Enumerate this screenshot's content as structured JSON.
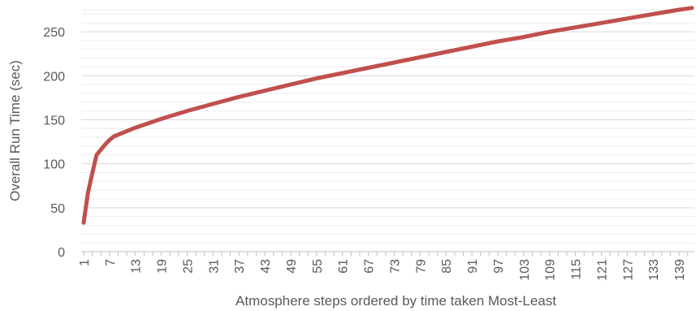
{
  "chart_data": {
    "type": "line",
    "title": "",
    "xlabel": "Atmosphere steps ordered by time taken Most-Least",
    "ylabel": "Overall Run Time (sec)",
    "ylim": [
      0,
      275
    ],
    "yticks": [
      "0",
      "50",
      "100",
      "150",
      "200",
      "250"
    ],
    "xlim": [
      1,
      142
    ],
    "xticks": [
      "1",
      "7",
      "13",
      "19",
      "25",
      "31",
      "37",
      "43",
      "49",
      "55",
      "61",
      "67",
      "73",
      "79",
      "85",
      "91",
      "97",
      "103",
      "109",
      "115",
      "121",
      "127",
      "133",
      "139"
    ],
    "grid": true,
    "minor_grid": true,
    "legend": "none",
    "line_color": "#C0504D",
    "series": [
      {
        "x": [
          1,
          2,
          3,
          4,
          5,
          6,
          7,
          8,
          10,
          13,
          19,
          25,
          31,
          37,
          43,
          49,
          55,
          61,
          67,
          73,
          79,
          85,
          91,
          97,
          103,
          109,
          115,
          121,
          127,
          133,
          139,
          142
        ],
        "values": [
          33,
          67,
          89,
          110,
          116,
          122,
          127,
          131,
          135,
          141,
          151,
          160,
          168,
          176,
          183,
          190,
          197,
          203,
          209,
          215,
          221,
          227,
          233,
          239,
          244,
          250,
          255,
          260,
          265,
          270,
          275,
          277
        ]
      }
    ]
  }
}
